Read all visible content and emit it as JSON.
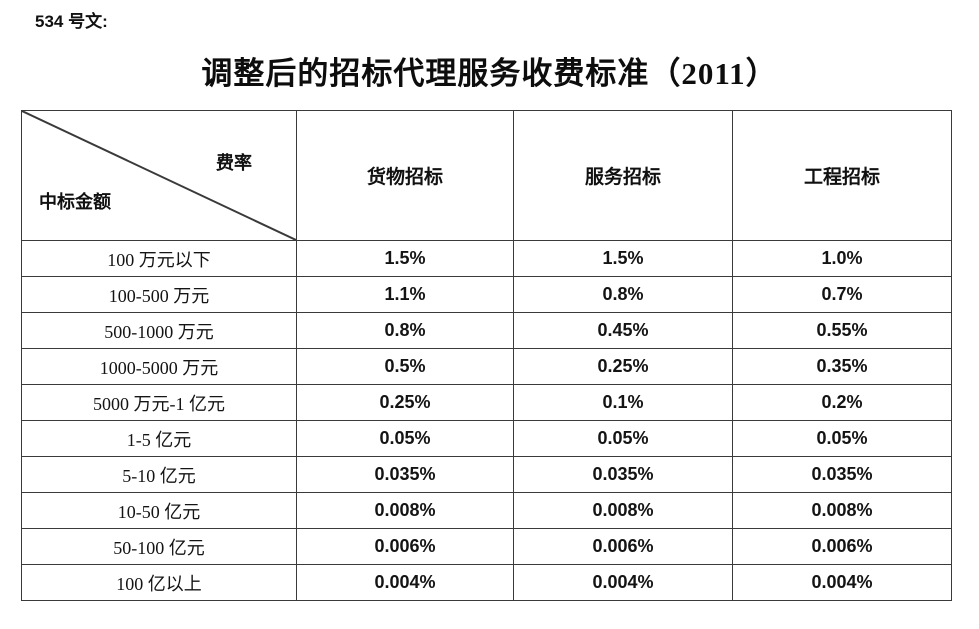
{
  "doc_ref": "534 号文:",
  "title": "调整后的招标代理服务收费标准（2011）",
  "table": {
    "corner": {
      "top_right_label": "费率",
      "bottom_left_label": "中标金额"
    },
    "columns": [
      "货物招标",
      "服务招标",
      "工程招标"
    ],
    "rows": [
      {
        "label": "100 万元以下",
        "values": [
          "1.5%",
          "1.5%",
          "1.0%"
        ]
      },
      {
        "label": "100-500 万元",
        "values": [
          "1.1%",
          "0.8%",
          "0.7%"
        ]
      },
      {
        "label": "500-1000 万元",
        "values": [
          "0.8%",
          "0.45%",
          "0.55%"
        ]
      },
      {
        "label": "1000-5000 万元",
        "values": [
          "0.5%",
          "0.25%",
          "0.35%"
        ]
      },
      {
        "label": "5000 万元-1 亿元",
        "values": [
          "0.25%",
          "0.1%",
          "0.2%"
        ]
      },
      {
        "label": "1-5 亿元",
        "values": [
          "0.05%",
          "0.05%",
          "0.05%"
        ]
      },
      {
        "label": "5-10 亿元",
        "values": [
          "0.035%",
          "0.035%",
          "0.035%"
        ]
      },
      {
        "label": "10-50 亿元",
        "values": [
          "0.008%",
          "0.008%",
          "0.008%"
        ]
      },
      {
        "label": "50-100 亿元",
        "values": [
          "0.006%",
          "0.006%",
          "0.006%"
        ]
      },
      {
        "label": "100 亿以上",
        "values": [
          "0.004%",
          "0.004%",
          "0.004%"
        ]
      }
    ]
  },
  "colors": {
    "background": "#ffffff",
    "text": "#141414",
    "border": "#3a3a3a"
  }
}
